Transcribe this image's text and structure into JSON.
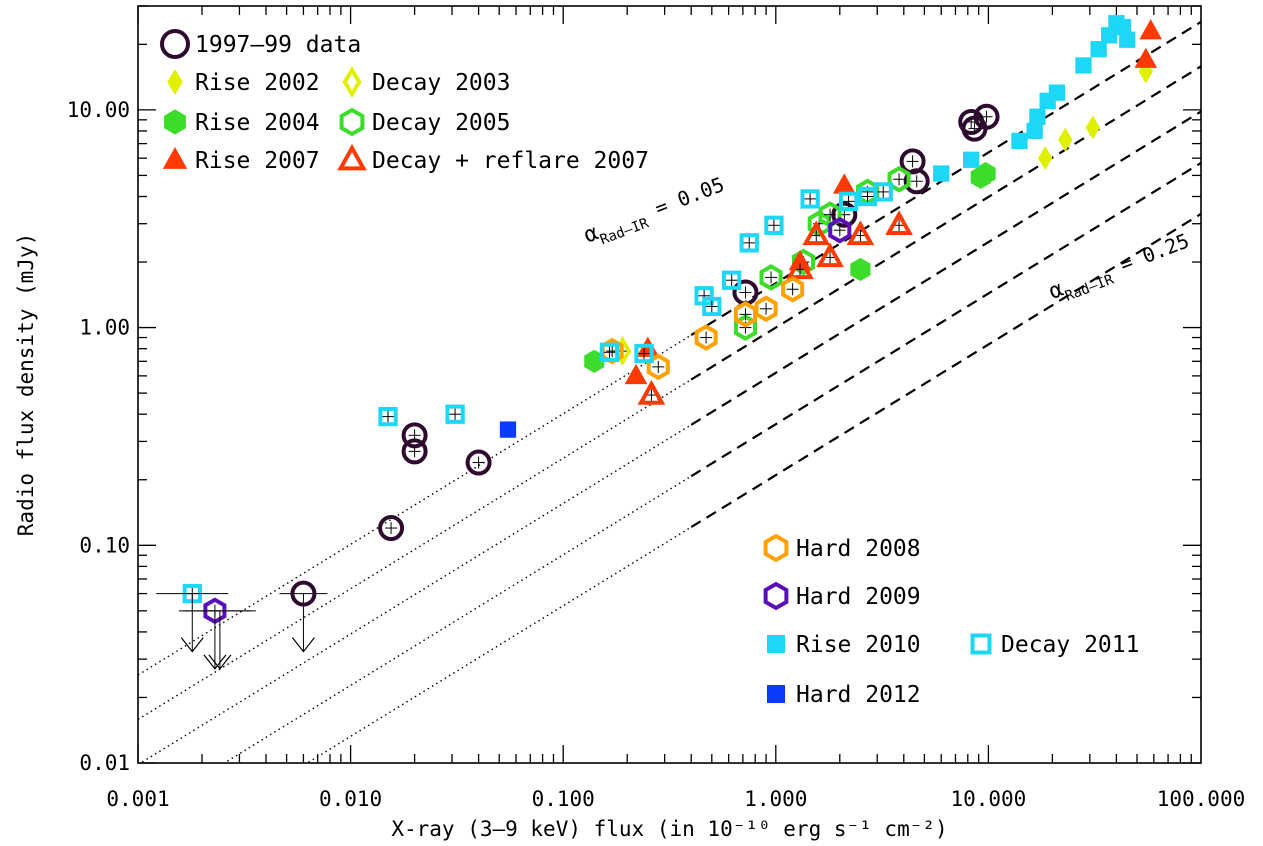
{
  "chart_data": {
    "type": "scatter",
    "xscale": "log",
    "yscale": "log",
    "xlim": [
      0.001,
      100
    ],
    "ylim": [
      0.01,
      30
    ],
    "xlabel": "X-ray (3–9 keV) flux (in 10⁻¹⁰ erg s⁻¹ cm⁻²)",
    "ylabel": "Radio flux density (mJy)",
    "xticks": [
      {
        "value": 0.001,
        "label": "0.001"
      },
      {
        "value": 0.01,
        "label": "0.010"
      },
      {
        "value": 0.1,
        "label": "0.100"
      },
      {
        "value": 1,
        "label": "1.000"
      },
      {
        "value": 10,
        "label": "10.000"
      },
      {
        "value": 100,
        "label": "100.000"
      }
    ],
    "yticks": [
      {
        "value": 0.01,
        "label": "0.01"
      },
      {
        "value": 0.1,
        "label": "0.10"
      },
      {
        "value": 1,
        "label": "1.00"
      },
      {
        "value": 10,
        "label": "10.00"
      }
    ],
    "grid": false,
    "legend_positions": [
      "top-left",
      "bottom-right"
    ],
    "reference_lines": [
      {
        "y_at_x1": 1.6,
        "dash_from_x": 0.4
      },
      {
        "y_at_x1": 1.0,
        "dash_from_x": 0.4
      },
      {
        "y_at_x1": 0.62,
        "dash_from_x": 0.4
      },
      {
        "y_at_x1": 0.36,
        "dash_from_x": 0.4
      },
      {
        "y_at_x1": 0.21,
        "dash_from_x": 0.4
      }
    ],
    "reference_slope": 0.6,
    "annotations": [
      {
        "text_main": "α",
        "text_sub": "Rad–IR",
        "text_rest": " = 0.05",
        "x": 0.13,
        "y": 2.45,
        "rotate": -21
      },
      {
        "text_main": "α",
        "text_sub": "Rad–IR",
        "text_rest": " = 0.25",
        "x": 20,
        "y": 1.35,
        "rotate": -21
      }
    ],
    "series": [
      {
        "name": "1997–99 data",
        "marker": "circle",
        "filled": false,
        "color": "#2d0a2e",
        "points": [
          [
            0.0155,
            0.12
          ],
          [
            0.02,
            0.32
          ],
          [
            0.02,
            0.27
          ],
          [
            0.04,
            0.24
          ],
          [
            0.72,
            1.45
          ],
          [
            2.1,
            3.3
          ],
          [
            4.4,
            5.8
          ],
          [
            4.6,
            4.7
          ],
          [
            8.3,
            8.8
          ],
          [
            8.6,
            8.2
          ],
          [
            9.8,
            9.3
          ]
        ],
        "upper_limits": [
          [
            0.006,
            0.06
          ]
        ]
      },
      {
        "name": "Rise 2002",
        "marker": "diamond",
        "filled": true,
        "color": "#e0f000",
        "points": [
          [
            18.5,
            6.0
          ],
          [
            23,
            7.3
          ],
          [
            31,
            8.3
          ],
          [
            55,
            15
          ]
        ]
      },
      {
        "name": "Decay 2003",
        "marker": "diamond",
        "filled": false,
        "color": "#e0f000",
        "points": [
          [
            0.19,
            0.78
          ]
        ]
      },
      {
        "name": "Rise 2004",
        "marker": "hexagon",
        "filled": true,
        "color": "#3ddc2a",
        "points": [
          [
            0.14,
            0.7
          ],
          [
            2.5,
            1.85
          ],
          [
            9.2,
            4.9
          ],
          [
            9.7,
            5.1
          ]
        ]
      },
      {
        "name": "Decay 2005",
        "marker": "hexagon",
        "filled": false,
        "color": "#3ddc2a",
        "points": [
          [
            0.72,
            1.0
          ],
          [
            0.95,
            1.7
          ],
          [
            1.35,
            2.0
          ],
          [
            1.6,
            3.0
          ],
          [
            1.8,
            3.3
          ],
          [
            2.7,
            4.2
          ],
          [
            3.8,
            4.8
          ]
        ]
      },
      {
        "name": "Rise 2007",
        "marker": "triangle",
        "filled": true,
        "color": "#ff3a00",
        "points": [
          [
            0.25,
            0.8
          ],
          [
            0.22,
            0.6
          ],
          [
            1.3,
            2.0
          ],
          [
            2.1,
            4.5
          ],
          [
            55,
            17
          ],
          [
            58,
            23
          ]
        ]
      },
      {
        "name": "Decay + reflare 2007",
        "marker": "triangle",
        "filled": false,
        "color": "#ff3a00",
        "points": [
          [
            0.26,
            0.49
          ],
          [
            1.3,
            1.85
          ],
          [
            1.8,
            2.1
          ],
          [
            2.5,
            2.65
          ],
          [
            3.8,
            2.95
          ],
          [
            1.55,
            2.65
          ]
        ]
      },
      {
        "name": "Hard 2008",
        "marker": "hexagon",
        "filled": false,
        "color": "#ffa200",
        "points": [
          [
            0.17,
            0.78
          ],
          [
            0.28,
            0.66
          ],
          [
            0.47,
            0.9
          ],
          [
            0.72,
            1.15
          ],
          [
            0.9,
            1.22
          ],
          [
            1.2,
            1.5
          ]
        ]
      },
      {
        "name": "Hard 2009",
        "marker": "hexagon",
        "filled": false,
        "color": "#5a0fb8",
        "points": [
          [
            0.0023,
            0.05
          ],
          [
            2.0,
            2.8
          ]
        ]
      },
      {
        "name": "Rise 2010",
        "marker": "square",
        "filled": true,
        "color": "#1ed6f5",
        "points": [
          [
            6,
            5.1
          ],
          [
            8.3,
            5.9
          ],
          [
            14,
            7.2
          ],
          [
            16.5,
            8.0
          ],
          [
            17,
            9.3
          ],
          [
            19,
            11
          ],
          [
            21,
            12
          ],
          [
            28,
            16
          ],
          [
            33,
            19
          ],
          [
            37,
            22
          ],
          [
            40,
            25
          ],
          [
            43,
            24
          ],
          [
            45,
            21
          ]
        ]
      },
      {
        "name": "Decay 2011",
        "marker": "square",
        "filled": false,
        "color": "#1ed6f5",
        "points": [
          [
            0.0018,
            0.06
          ],
          [
            0.015,
            0.39
          ],
          [
            0.031,
            0.4
          ],
          [
            0.165,
            0.77
          ],
          [
            0.24,
            0.76
          ],
          [
            0.46,
            1.4
          ],
          [
            0.5,
            1.25
          ],
          [
            0.62,
            1.65
          ],
          [
            0.75,
            2.45
          ],
          [
            0.98,
            2.95
          ],
          [
            1.45,
            3.9
          ],
          [
            2.2,
            3.8
          ],
          [
            2.7,
            4.0
          ],
          [
            3.2,
            4.2
          ]
        ]
      },
      {
        "name": "Hard 2012",
        "marker": "square",
        "filled": true,
        "color": "#0a3cff",
        "points": [
          [
            0.055,
            0.34
          ]
        ]
      }
    ],
    "lone_upper_limits": [
      [
        0.0023,
        0.05
      ]
    ]
  }
}
